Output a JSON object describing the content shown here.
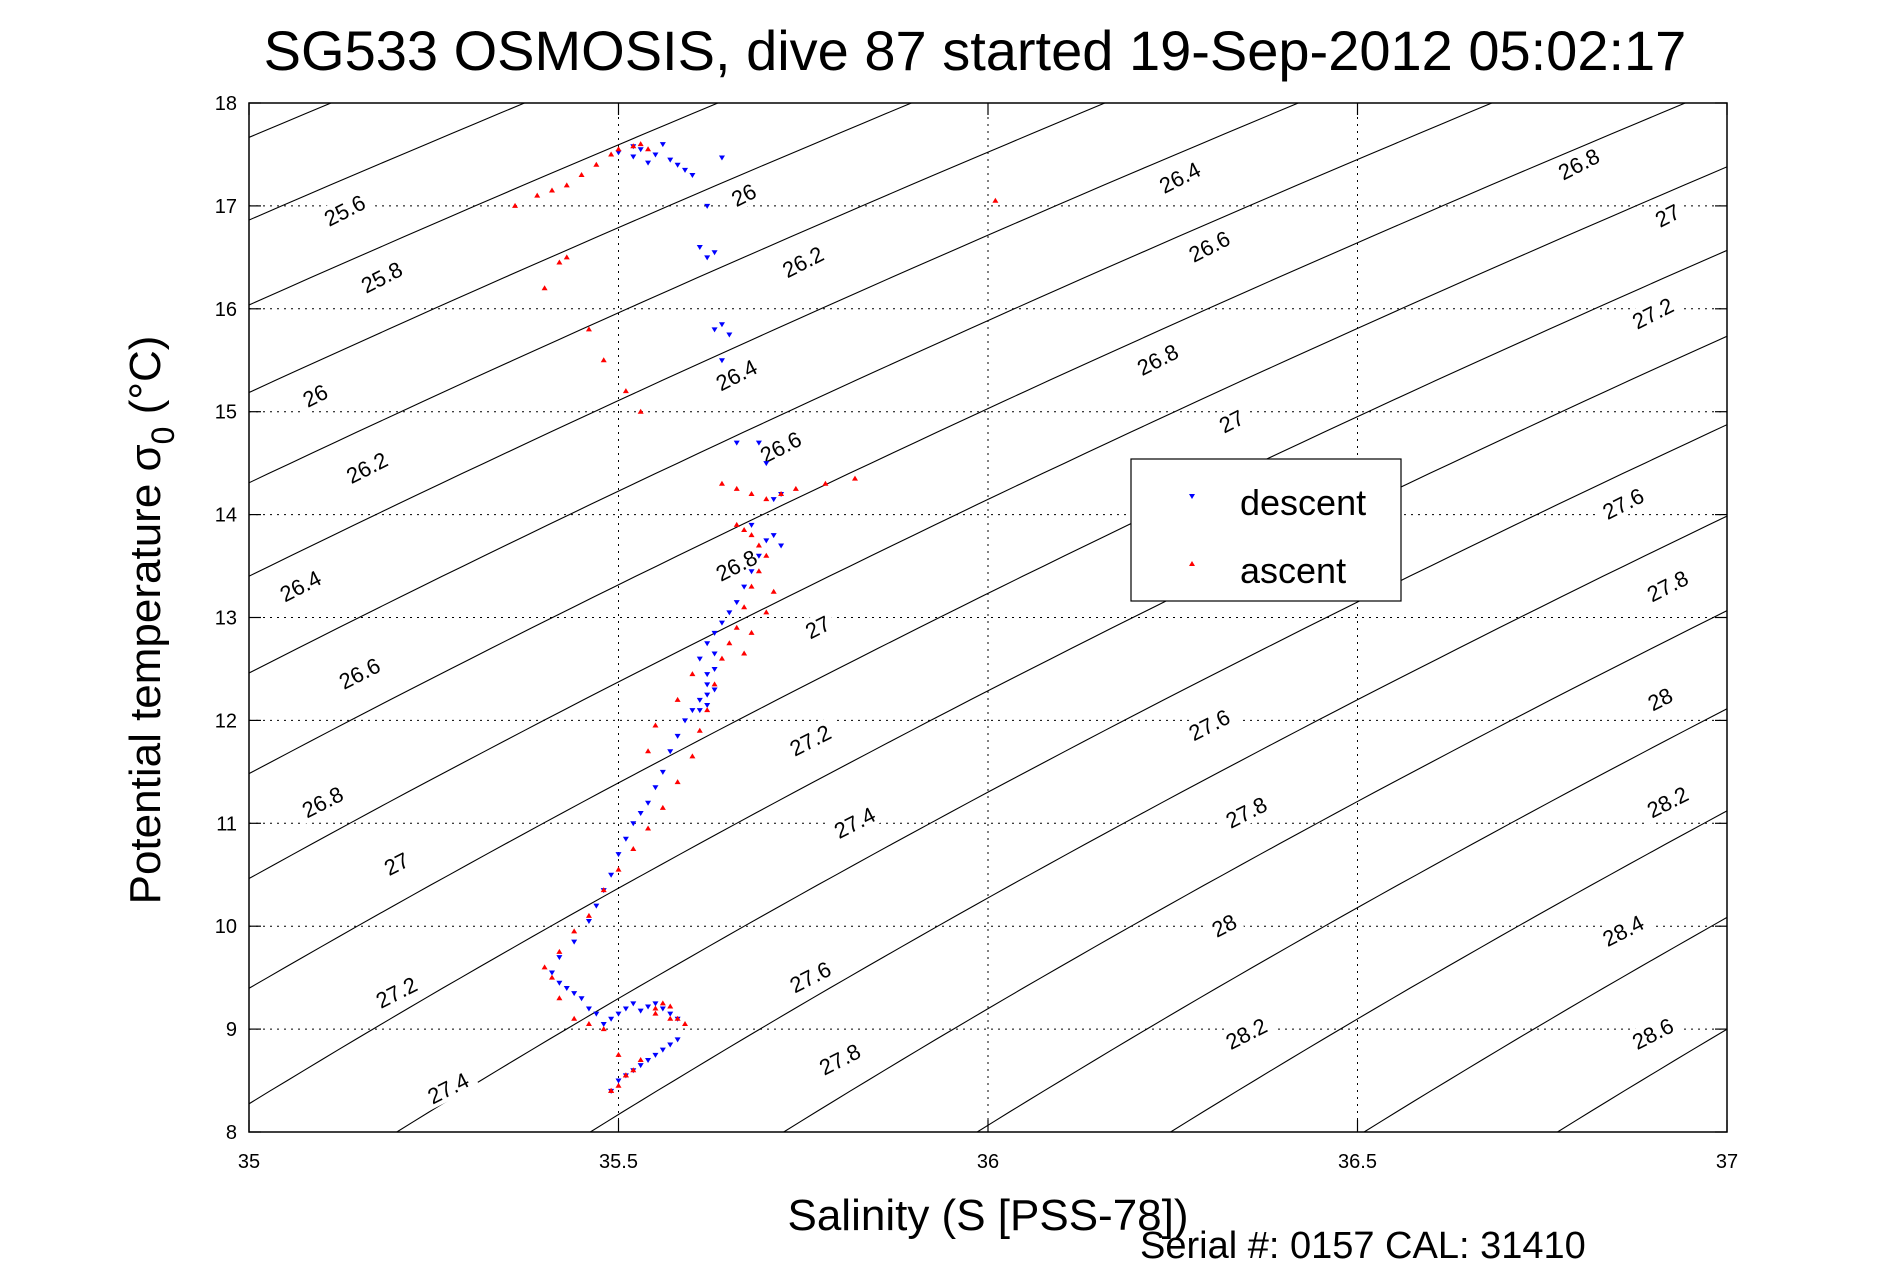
{
  "chart_data": {
    "type": "scatter",
    "title": "SG533 OSMOSIS, dive 87 started 19-Sep-2012 05:02:17",
    "xlabel": "Salinity (S [PSS-78])",
    "ylabel_main": "Potential temperature σ",
    "ylabel_sub": "0",
    "ylabel_unit": " (°C)",
    "xlim": [
      35,
      37
    ],
    "ylim": [
      8,
      18
    ],
    "x_ticks": [
      35,
      35.5,
      36,
      36.5,
      37
    ],
    "x_tick_labels": [
      "35",
      "35.5",
      "36",
      "36.5",
      "37"
    ],
    "y_ticks": [
      8,
      9,
      10,
      11,
      12,
      13,
      14,
      15,
      16,
      17,
      18
    ],
    "y_tick_labels": [
      "8",
      "9",
      "10",
      "11",
      "12",
      "13",
      "14",
      "15",
      "16",
      "17",
      "18"
    ],
    "grid": true,
    "legend_position": "right-center",
    "footer": "Serial #: 0157  CAL: 31410",
    "contours": {
      "levels": [
        25.2,
        25.4,
        25.6,
        25.8,
        26.0,
        26.2,
        26.4,
        26.6,
        26.8,
        27.0,
        27.2,
        27.4,
        27.6,
        27.8,
        28.0,
        28.2,
        28.4,
        28.6,
        28.8
      ],
      "color": "#000000",
      "labels": [
        {
          "text": "25.6",
          "s": 35.13,
          "t": 16.95
        },
        {
          "text": "25.8",
          "s": 35.18,
          "t": 16.3
        },
        {
          "text": "26",
          "s": 35.09,
          "t": 15.15
        },
        {
          "text": "26.2",
          "s": 35.16,
          "t": 14.45
        },
        {
          "text": "26.4",
          "s": 35.07,
          "t": 13.3
        },
        {
          "text": "26.6",
          "s": 35.15,
          "t": 12.45
        },
        {
          "text": "26.8",
          "s": 35.1,
          "t": 11.2
        },
        {
          "text": "27",
          "s": 35.2,
          "t": 10.6
        },
        {
          "text": "27.2",
          "s": 35.2,
          "t": 9.35
        },
        {
          "text": "27.4",
          "s": 35.27,
          "t": 8.42
        },
        {
          "text": "26",
          "s": 35.67,
          "t": 17.1
        },
        {
          "text": "26.2",
          "s": 35.75,
          "t": 16.45
        },
        {
          "text": "26.4",
          "s": 35.66,
          "t": 15.35
        },
        {
          "text": "26.6",
          "s": 35.72,
          "t": 14.65
        },
        {
          "text": "26.8",
          "s": 35.66,
          "t": 13.5
        },
        {
          "text": "27",
          "s": 35.77,
          "t": 12.9
        },
        {
          "text": "27.2",
          "s": 35.76,
          "t": 11.8
        },
        {
          "text": "27.4",
          "s": 35.82,
          "t": 11.0
        },
        {
          "text": "27.6",
          "s": 35.76,
          "t": 9.5
        },
        {
          "text": "27.8",
          "s": 35.8,
          "t": 8.7
        },
        {
          "text": "26.4",
          "s": 36.26,
          "t": 17.27
        },
        {
          "text": "26.6",
          "s": 36.3,
          "t": 16.6
        },
        {
          "text": "26.8",
          "s": 36.23,
          "t": 15.5
        },
        {
          "text": "27",
          "s": 36.33,
          "t": 14.9
        },
        {
          "text": "27.6",
          "s": 36.3,
          "t": 11.95
        },
        {
          "text": "27.8",
          "s": 36.35,
          "t": 11.1
        },
        {
          "text": "28",
          "s": 36.32,
          "t": 10.0
        },
        {
          "text": "28.2",
          "s": 36.35,
          "t": 8.95
        },
        {
          "text": "26.8",
          "s": 36.8,
          "t": 17.4
        },
        {
          "text": "27",
          "s": 36.92,
          "t": 16.9
        },
        {
          "text": "27.2",
          "s": 36.9,
          "t": 15.95
        },
        {
          "text": "27.6",
          "s": 36.86,
          "t": 14.1
        },
        {
          "text": "27.8",
          "s": 36.92,
          "t": 13.3
        },
        {
          "text": "28",
          "s": 36.91,
          "t": 12.2
        },
        {
          "text": "28.2",
          "s": 36.92,
          "t": 11.2
        },
        {
          "text": "28.4",
          "s": 36.86,
          "t": 9.95
        },
        {
          "text": "28.6",
          "s": 36.9,
          "t": 8.95
        }
      ]
    },
    "series": [
      {
        "name": "descent",
        "color": "#0000ff",
        "marker": "triangle-down",
        "x": [
          35.49,
          35.5,
          35.51,
          35.52,
          35.53,
          35.54,
          35.55,
          35.56,
          35.57,
          35.58,
          35.58,
          35.57,
          35.56,
          35.55,
          35.54,
          35.53,
          35.52,
          35.51,
          35.5,
          35.49,
          35.48,
          35.47,
          35.46,
          35.45,
          35.44,
          35.43,
          35.42,
          35.41,
          35.42,
          35.44,
          35.46,
          35.47,
          35.48,
          35.49,
          35.5,
          35.51,
          35.52,
          35.53,
          35.54,
          35.55,
          35.56,
          35.57,
          35.58,
          35.59,
          35.6,
          35.61,
          35.62,
          35.63,
          35.63,
          35.62,
          35.61,
          35.62,
          35.63,
          35.62,
          35.61,
          35.62,
          35.63,
          35.64,
          35.65,
          35.66,
          35.67,
          35.68,
          35.69,
          35.7,
          35.71,
          35.72,
          35.71,
          35.7,
          35.69,
          35.72,
          35.68,
          35.66,
          35.64,
          35.63,
          35.64,
          35.65,
          35.62,
          35.63,
          35.61,
          35.62,
          35.6,
          35.59,
          35.57,
          35.53,
          35.55,
          35.52,
          35.54,
          35.64,
          35.5,
          35.52,
          35.56,
          35.58
        ],
        "y": [
          8.4,
          8.5,
          8.55,
          8.6,
          8.65,
          8.7,
          8.75,
          8.8,
          8.85,
          8.9,
          9.1,
          9.15,
          9.2,
          9.25,
          9.22,
          9.18,
          9.25,
          9.2,
          9.15,
          9.1,
          9.05,
          9.15,
          9.2,
          9.3,
          9.35,
          9.4,
          9.45,
          9.55,
          9.7,
          9.85,
          10.05,
          10.2,
          10.35,
          10.5,
          10.7,
          10.85,
          11.0,
          11.1,
          11.2,
          11.35,
          11.5,
          11.7,
          11.85,
          12.0,
          12.1,
          12.2,
          12.35,
          12.5,
          12.65,
          12.75,
          12.6,
          12.45,
          12.3,
          12.15,
          12.1,
          12.25,
          12.85,
          12.95,
          13.05,
          13.15,
          13.3,
          13.45,
          13.6,
          13.75,
          13.8,
          14.2,
          14.15,
          14.5,
          14.7,
          13.7,
          13.9,
          14.7,
          15.5,
          15.8,
          15.85,
          15.75,
          16.5,
          16.55,
          16.6,
          17.0,
          17.3,
          17.35,
          17.45,
          17.55,
          17.5,
          17.48,
          17.42,
          17.47,
          17.52,
          17.58,
          17.6,
          17.4
        ]
      },
      {
        "name": "ascent",
        "color": "#ff0000",
        "marker": "triangle-up",
        "x": [
          35.49,
          35.5,
          35.51,
          35.52,
          35.53,
          35.5,
          35.48,
          35.46,
          35.44,
          35.42,
          35.41,
          35.4,
          35.42,
          35.44,
          35.46,
          35.48,
          35.5,
          35.52,
          35.54,
          35.56,
          35.58,
          35.6,
          35.61,
          35.62,
          35.63,
          35.64,
          35.65,
          35.66,
          35.67,
          35.68,
          35.69,
          35.7,
          35.69,
          35.68,
          35.67,
          35.66,
          35.67,
          35.68,
          35.7,
          35.71,
          35.6,
          35.58,
          35.55,
          35.54,
          35.55,
          35.56,
          35.57,
          35.58,
          35.59,
          35.55,
          35.57,
          35.36,
          35.39,
          35.41,
          35.43,
          35.45,
          35.47,
          35.49,
          35.5,
          35.52,
          35.53,
          35.54,
          35.4,
          35.42,
          35.43,
          35.46,
          35.48,
          35.51,
          35.53,
          35.64,
          35.66,
          35.68,
          35.7,
          35.72,
          35.74,
          35.78,
          35.82,
          36.01,
          35.49,
          35.51
        ],
        "y": [
          8.4,
          8.45,
          8.55,
          8.6,
          8.7,
          8.75,
          9.0,
          9.05,
          9.1,
          9.3,
          9.5,
          9.6,
          9.75,
          9.95,
          10.1,
          10.35,
          10.55,
          10.75,
          10.95,
          11.15,
          11.4,
          11.65,
          11.9,
          12.1,
          12.35,
          12.6,
          12.75,
          12.9,
          13.1,
          13.3,
          13.45,
          13.6,
          13.7,
          13.8,
          13.85,
          13.9,
          12.65,
          12.85,
          13.05,
          13.25,
          12.45,
          12.2,
          11.95,
          11.7,
          9.15,
          9.25,
          9.22,
          9.1,
          9.05,
          9.2,
          9.1,
          17.0,
          17.1,
          17.15,
          17.2,
          17.3,
          17.4,
          17.5,
          17.55,
          17.58,
          17.6,
          17.55,
          16.2,
          16.45,
          16.5,
          15.8,
          15.5,
          15.2,
          15.0,
          14.3,
          14.25,
          14.2,
          14.15,
          14.2,
          14.25,
          14.3,
          14.35,
          17.05,
          8.4,
          8.55
        ]
      }
    ]
  }
}
